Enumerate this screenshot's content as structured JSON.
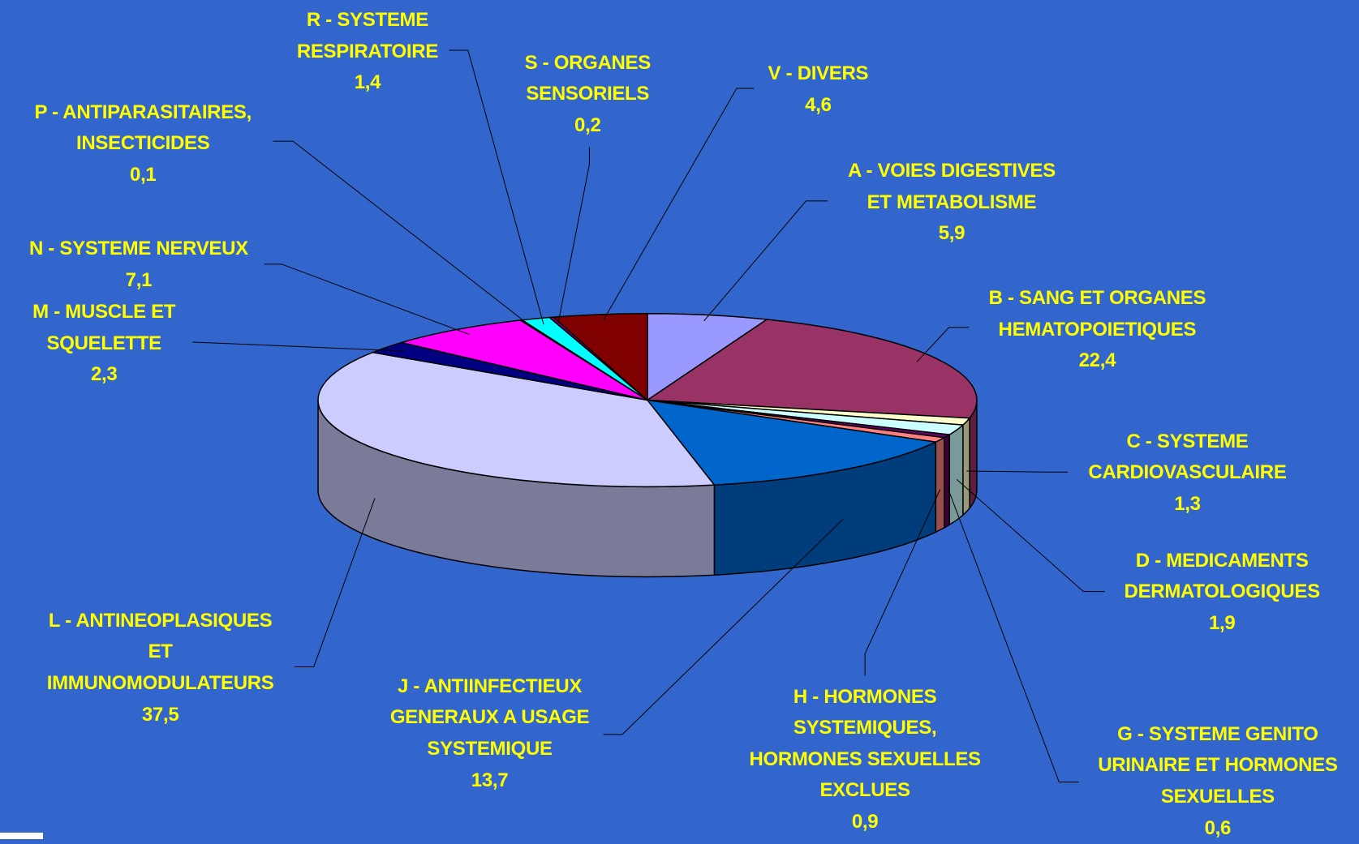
{
  "chart_data": {
    "type": "pie3d",
    "categories": [
      "A - VOIES DIGESTIVES\nET METABOLISME",
      "B - SANG ET ORGANES\nHEMATOPOIETIQUES",
      "C - SYSTEME\nCARDIOVASCULAIRE",
      "D - MEDICAMENTS\nDERMATOLOGIQUES",
      "G - SYSTEME GENITO\nURINAIRE ET HORMONES\nSEXUELLES",
      "H - HORMONES\nSYSTEMIQUES,\nHORMONES SEXUELLES\nEXCLUES",
      "J - ANTIINFECTIEUX\nGENERAUX A USAGE\nSYSTEMIQUE",
      "L - ANTINEOPLASIQUES\nET\nIMMUNOMODULATEURS",
      "M - MUSCLE ET\nSQUELETTE",
      "N - SYSTEME NERVEUX",
      "P - ANTIPARASITAIRES,\nINSECTICIDES",
      "R - SYSTEME\nRESPIRATOIRE",
      "S - ORGANES\nSENSORIELS",
      "V - DIVERS"
    ],
    "values": [
      5.9,
      22.4,
      1.3,
      1.9,
      0.6,
      0.9,
      13.7,
      37.5,
      2.3,
      7.1,
      0.1,
      1.4,
      0.2,
      4.6
    ],
    "value_labels": [
      "5,9",
      "22,4",
      "1,3",
      "1,9",
      "0,6",
      "0,9",
      "13,7",
      "37,5",
      "2,3",
      "7,1",
      "0,1",
      "1,4",
      "0,2",
      "4,6"
    ],
    "colors": [
      "#9999ff",
      "#993366",
      "#ffffcc",
      "#ccffff",
      "#660066",
      "#ff8080",
      "#0066cc",
      "#ccccff",
      "#000080",
      "#ff00ff",
      "#ffff00",
      "#00ffff",
      "#800080",
      "#800000"
    ]
  }
}
